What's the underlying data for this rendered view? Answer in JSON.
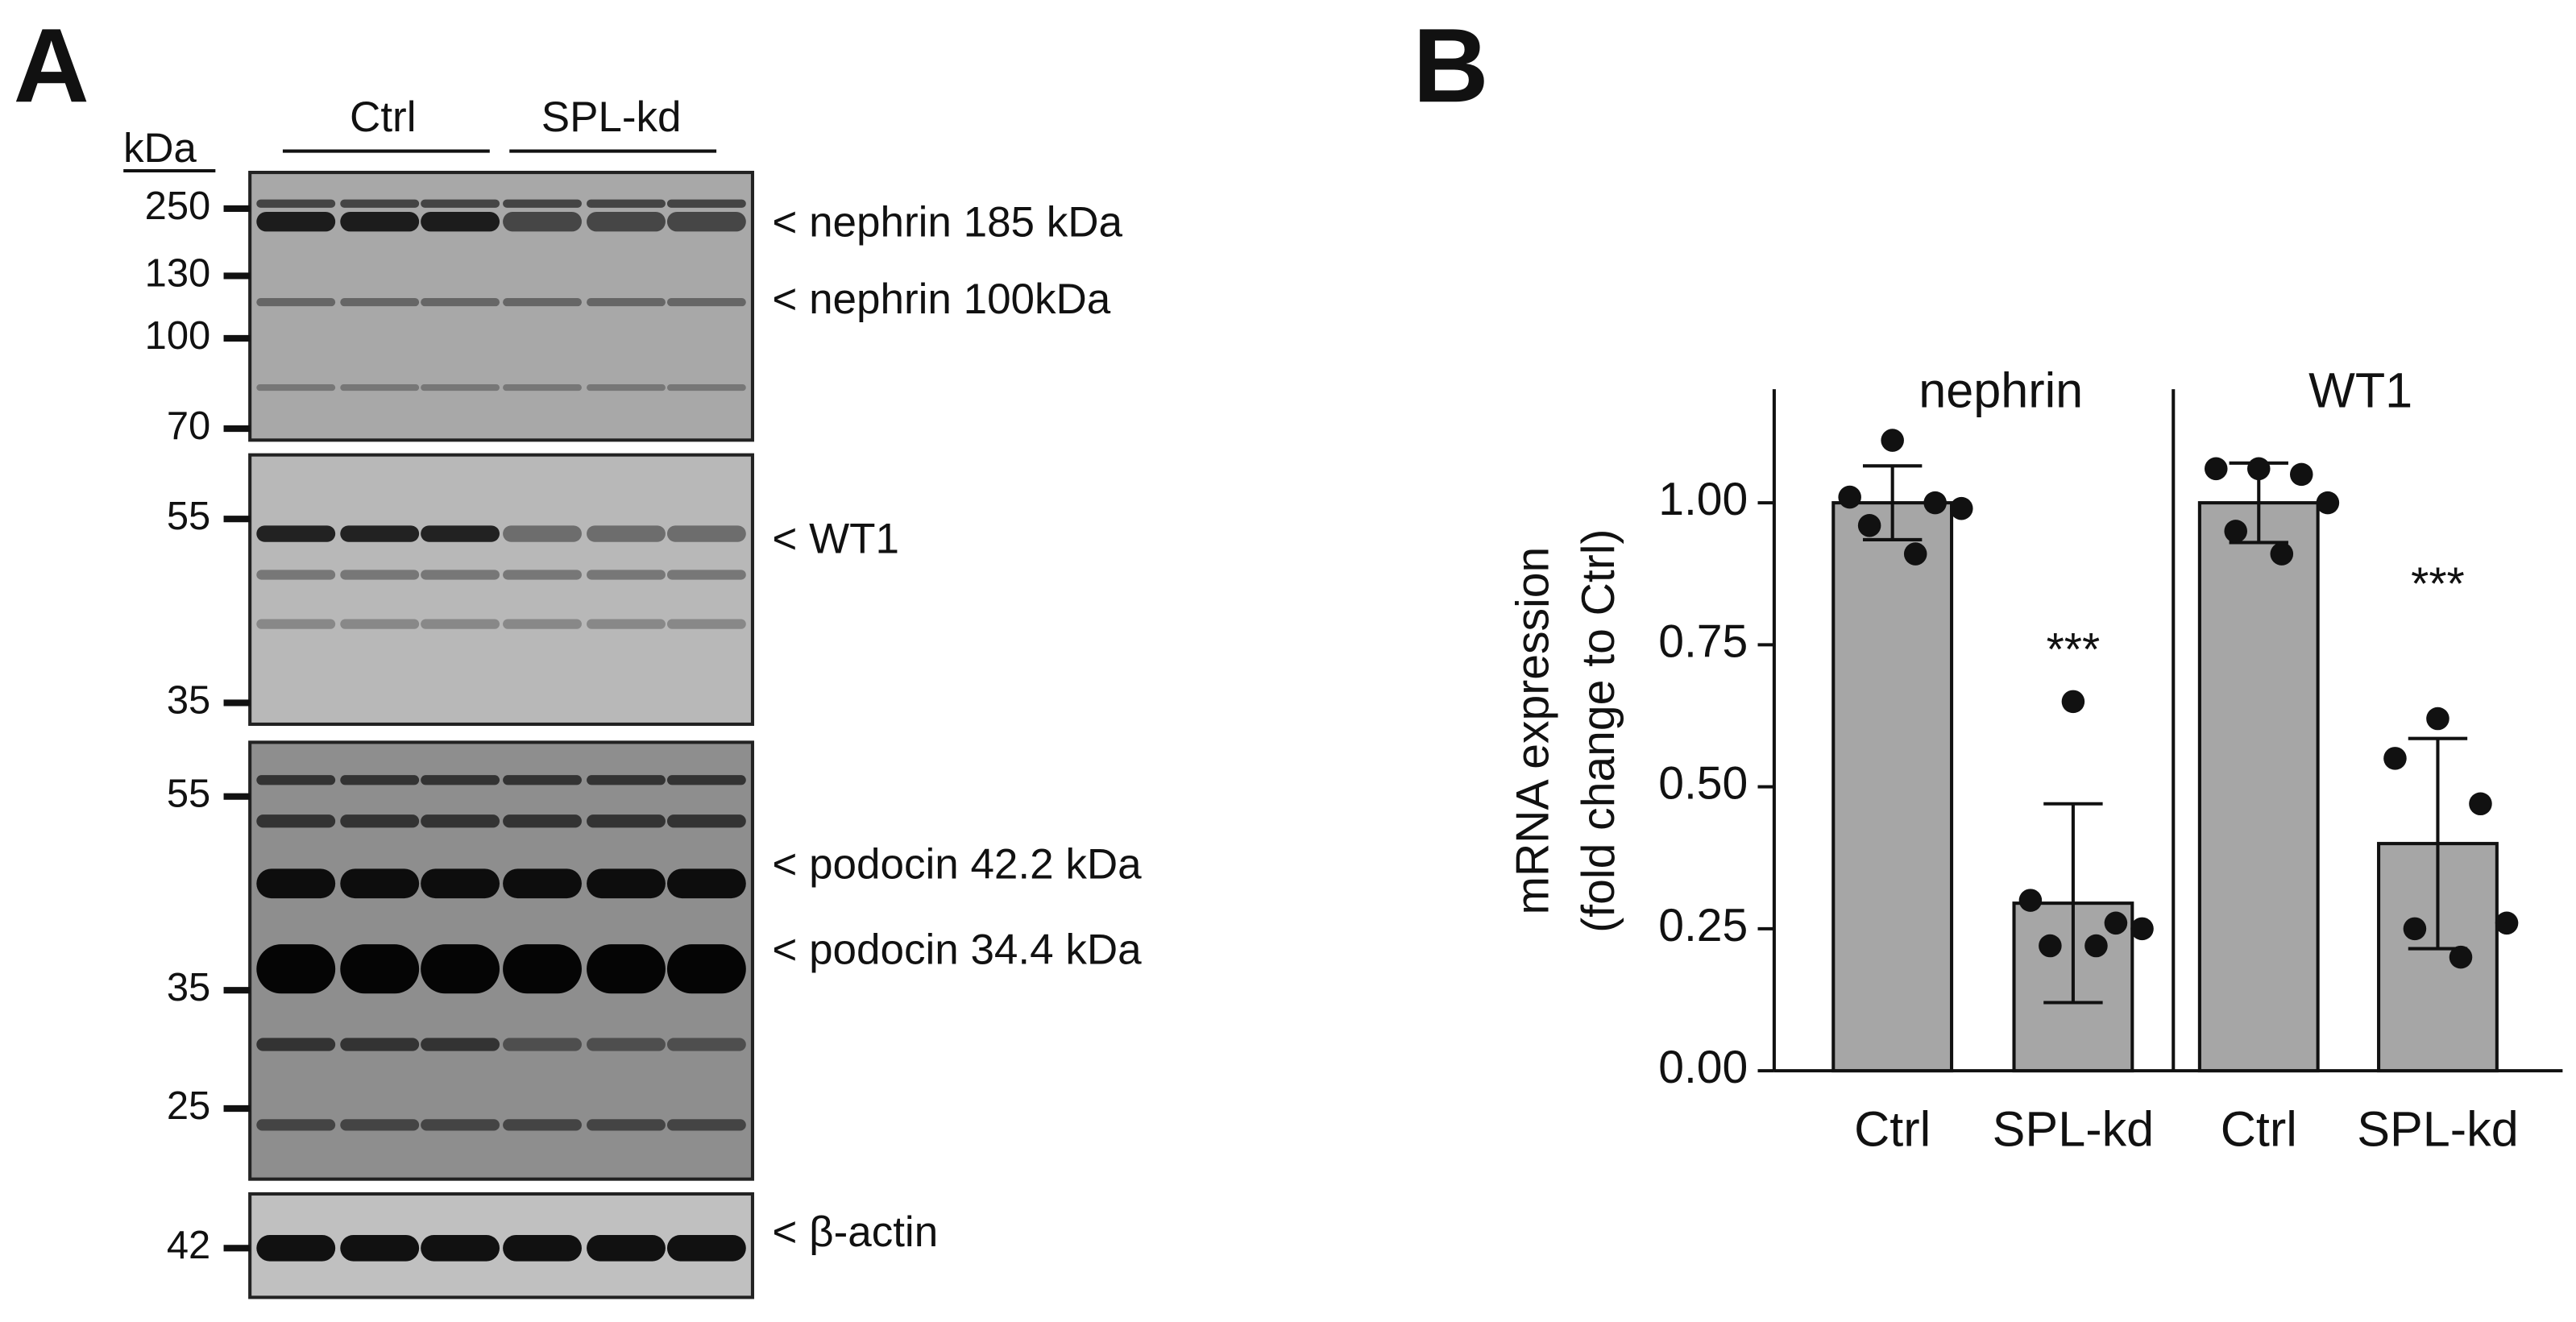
{
  "panel_a": {
    "label": "A",
    "unit_label": "kDa",
    "groups": [
      "Ctrl",
      "SPL-kd"
    ],
    "blots": [
      {
        "markers": [
          "250",
          "130",
          "100",
          "70"
        ],
        "bands": [
          "< nephrin 185 kDa",
          "< nephrin 100kDa"
        ]
      },
      {
        "markers": [
          "55",
          "35"
        ],
        "bands": [
          "< WT1"
        ]
      },
      {
        "markers": [
          "55",
          "35",
          "25"
        ],
        "bands": [
          "< podocin 42.2 kDa",
          "< podocin 34.4 kDa"
        ]
      },
      {
        "markers": [
          "42"
        ],
        "bands": [
          "< β-actin"
        ]
      }
    ]
  },
  "chart_data": {
    "type": "bar",
    "panel_label": "B",
    "y_label": [
      "mRNA expression",
      "(fold change to  Ctrl)"
    ],
    "groups": [
      "nephrin",
      "WT1"
    ],
    "categories": [
      "Ctrl",
      "SPL-kd",
      "Ctrl",
      "SPL-kd"
    ],
    "values": [
      1.0,
      0.295,
      1.0,
      0.4
    ],
    "errors": [
      0.065,
      0.175,
      0.07,
      0.185
    ],
    "points": [
      [
        1.11,
        1.01,
        1.0,
        0.99,
        0.96,
        0.91
      ],
      [
        0.65,
        0.3,
        0.26,
        0.25,
        0.22,
        0.22
      ],
      [
        1.06,
        1.06,
        1.05,
        1.0,
        0.95,
        0.91
      ],
      [
        0.62,
        0.55,
        0.47,
        0.26,
        0.25,
        0.2
      ]
    ],
    "significance": [
      null,
      "***",
      null,
      "***"
    ],
    "color": "#a6a6a6",
    "ylim": [
      0,
      1.2
    ],
    "yticks": [
      {
        "value": 0,
        "label": "0.00"
      },
      {
        "value": 0.25,
        "label": "0.25"
      },
      {
        "value": 0.5,
        "label": "0.50"
      },
      {
        "value": 0.75,
        "label": "0.75"
      },
      {
        "value": 1,
        "label": "1.00"
      }
    ]
  }
}
